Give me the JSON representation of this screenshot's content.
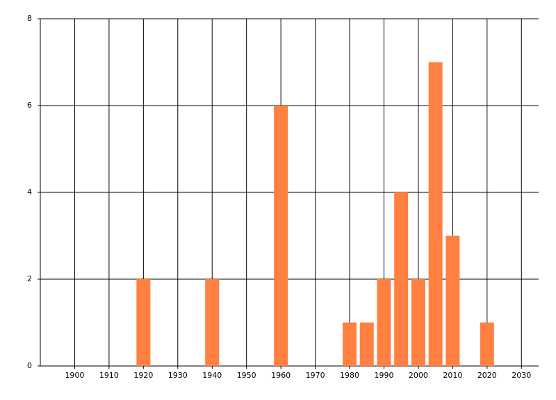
{
  "chart_data": {
    "type": "bar",
    "x": [
      1920,
      1940,
      1960,
      1980,
      1985,
      1990,
      1995,
      2000,
      2005,
      2010,
      2020
    ],
    "values": [
      2,
      2,
      6,
      1,
      1,
      2,
      4,
      2,
      7,
      3,
      1
    ],
    "color": "#ff8040",
    "xlim": [
      1890,
      2035
    ],
    "xticks": [
      1900,
      1910,
      1920,
      1930,
      1940,
      1950,
      1960,
      1970,
      1980,
      1990,
      2000,
      2010,
      2020,
      2030
    ],
    "ylim": [
      0,
      8
    ],
    "yticks": [
      0,
      2,
      4,
      6,
      8
    ],
    "grid": true
  }
}
